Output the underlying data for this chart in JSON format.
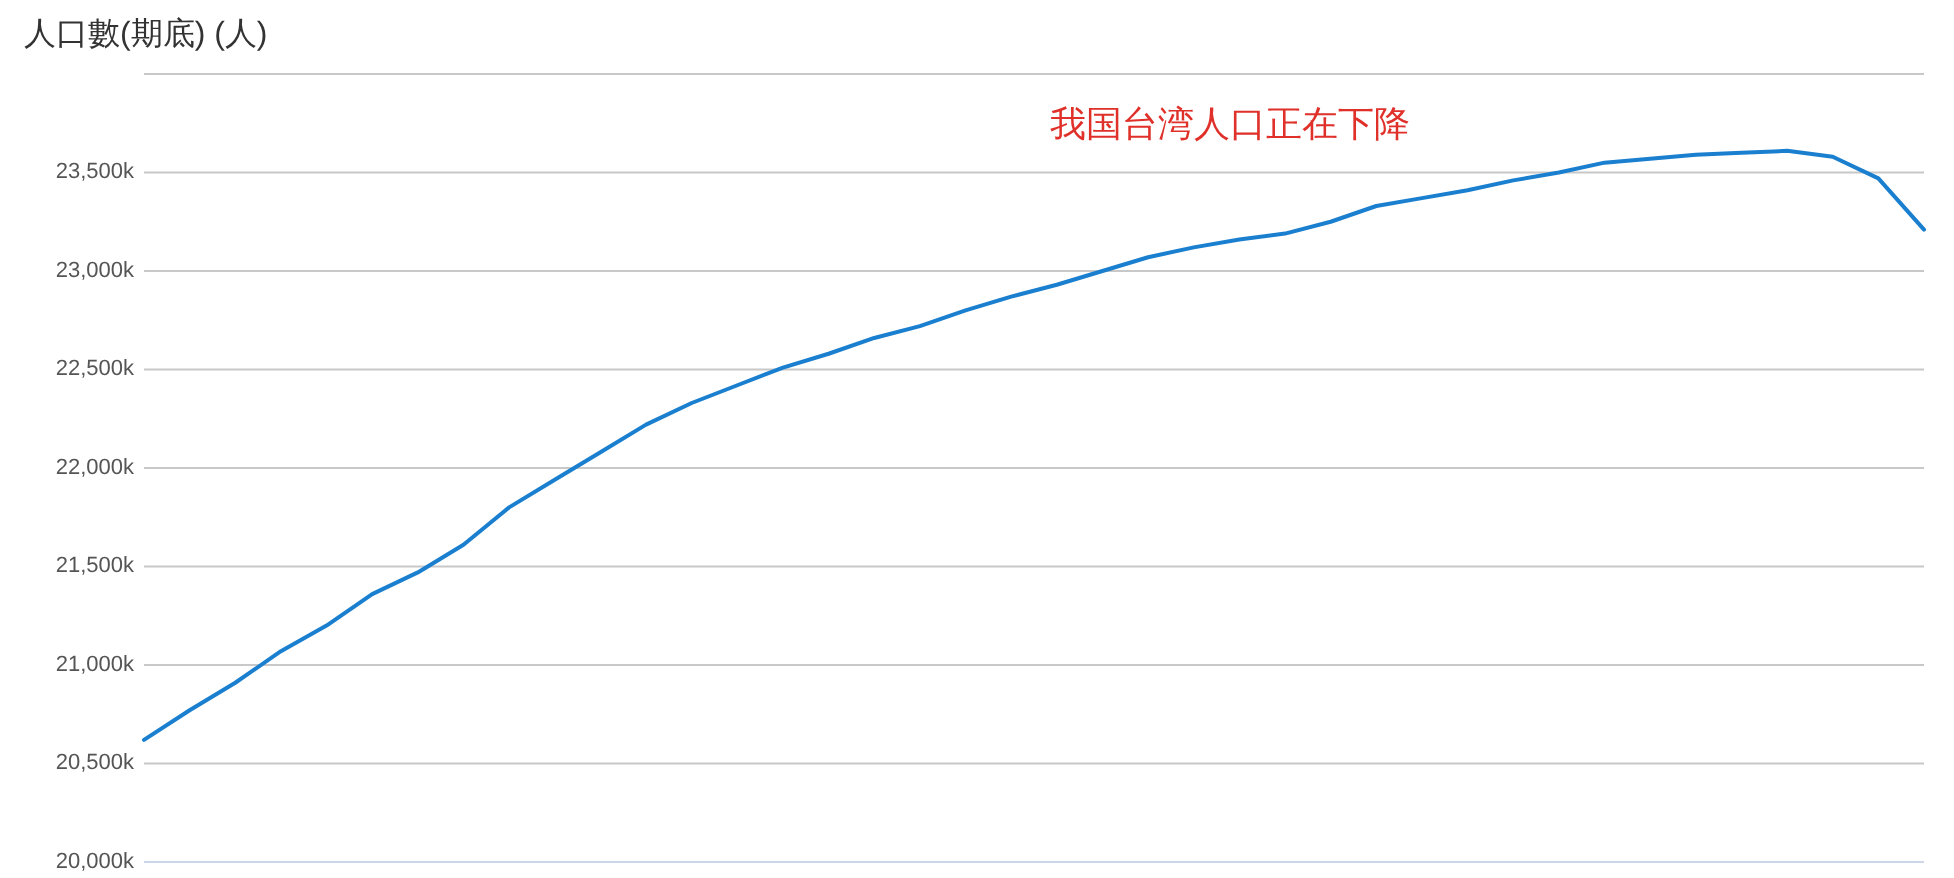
{
  "chart_data": {
    "type": "line",
    "title": "人口數(期底) (人)",
    "annotations": [
      "我国台湾人口正在下降"
    ],
    "categories": [
      null,
      null,
      null,
      null,
      null,
      null,
      null,
      null,
      null,
      null,
      null,
      null,
      null,
      null,
      null,
      null,
      null,
      null,
      null,
      null,
      null,
      null,
      null,
      null,
      null,
      null,
      null,
      null,
      null,
      null,
      null,
      null,
      null,
      null,
      null,
      null,
      null,
      null,
      null,
      null
    ],
    "series": [
      {
        "color": "#1a7fcf",
        "values": [
          20620,
          20770,
          20910,
          21070,
          21200,
          21360,
          21470,
          21610,
          21800,
          21940,
          22080,
          22220,
          22330,
          22420,
          22510,
          22580,
          22660,
          22720,
          22800,
          22870,
          22930,
          23000,
          23070,
          23120,
          23160,
          23190,
          23250,
          23330,
          23370,
          23410,
          23460,
          23500,
          23550,
          23570,
          23590,
          23600,
          23610,
          23580,
          23470,
          23210
        ]
      }
    ],
    "ylim": [
      20000,
      24000
    ],
    "yticks": [
      {
        "value": 20000,
        "label": "20,000k"
      },
      {
        "value": 20500,
        "label": "20,500k"
      },
      {
        "value": 21000,
        "label": "21,000k"
      },
      {
        "value": 21500,
        "label": "21,500k"
      },
      {
        "value": 22000,
        "label": "22,000k"
      },
      {
        "value": 22500,
        "label": "22,500k"
      },
      {
        "value": 23000,
        "label": "23,000k"
      },
      {
        "value": 23500,
        "label": "23,500k"
      },
      {
        "value": 24000,
        "label": null
      }
    ],
    "grid": "y",
    "tick_labels": "y",
    "marker": "none",
    "line_style": "solid"
  }
}
